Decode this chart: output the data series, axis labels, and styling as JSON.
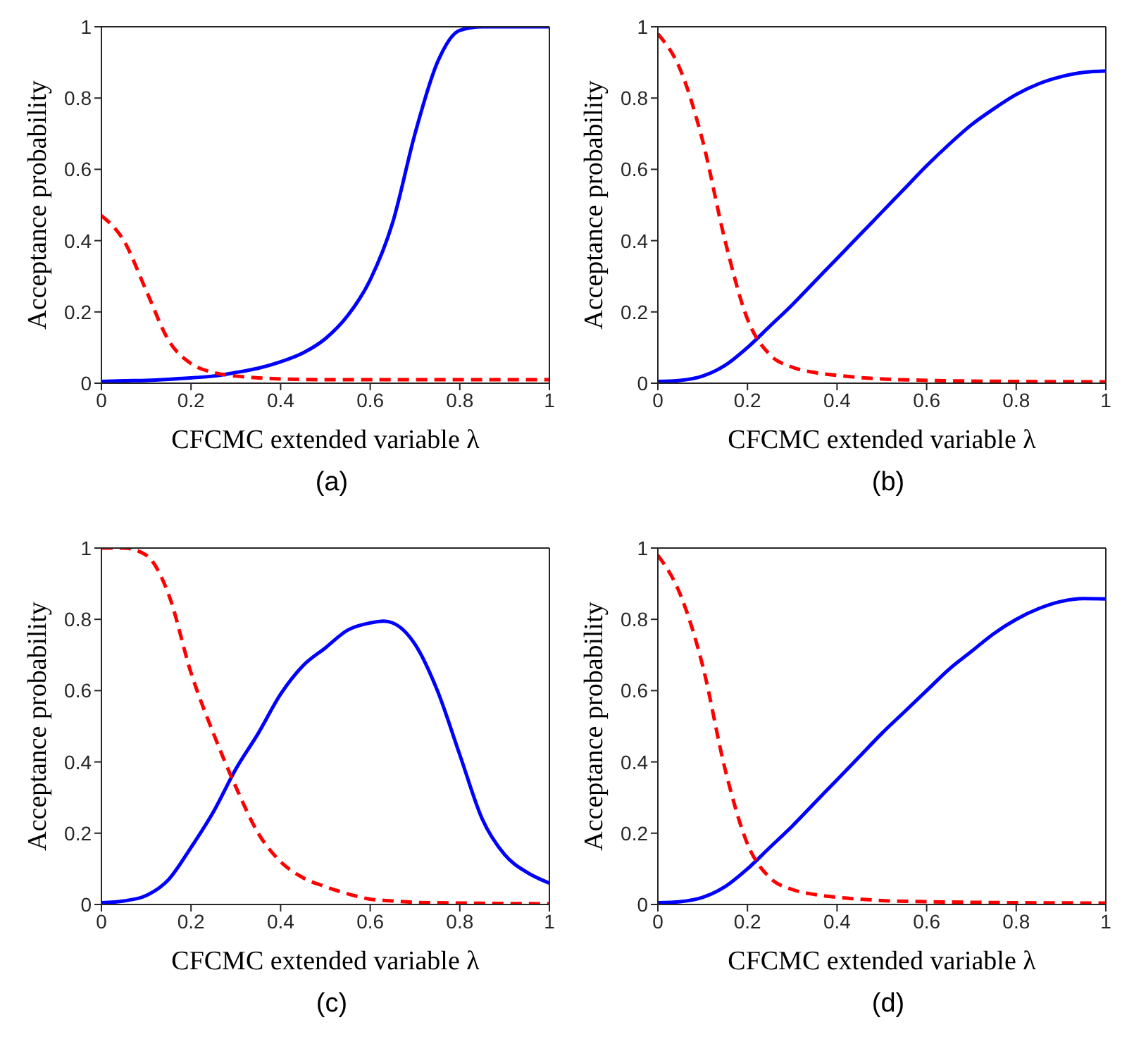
{
  "chart_data": [
    {
      "type": "line",
      "xlabel": "CFCMC extended variable λ",
      "ylabel": "Acceptance probability",
      "annotations": [
        "(a)"
      ],
      "xlim": [
        0,
        1
      ],
      "ylim": [
        0,
        1
      ],
      "xticks": [
        0,
        0.2,
        0.4,
        0.6,
        0.8,
        1
      ],
      "yticks": [
        0,
        0.2,
        0.4,
        0.6,
        0.8,
        1
      ],
      "grid": false,
      "legend": false,
      "marker": "none",
      "series": [
        {
          "color": "#0000ff",
          "line_style": "solid",
          "x": [
            0,
            0.05,
            0.1,
            0.15,
            0.2,
            0.25,
            0.3,
            0.35,
            0.4,
            0.45,
            0.5,
            0.55,
            0.6,
            0.65,
            0.7,
            0.75,
            0.8,
            0.85,
            0.9,
            0.95,
            1
          ],
          "values": [
            0.005,
            0.007,
            0.008,
            0.011,
            0.015,
            0.02,
            0.03,
            0.042,
            0.06,
            0.085,
            0.125,
            0.19,
            0.29,
            0.45,
            0.7,
            0.9,
            0.99,
            1,
            1,
            1,
            1
          ]
        },
        {
          "color": "#ff0000",
          "line_style": "dashed",
          "x": [
            0,
            0.05,
            0.1,
            0.15,
            0.2,
            0.25,
            0.3,
            0.35,
            0.4,
            0.5,
            0.6,
            0.7,
            0.8,
            0.9,
            1
          ],
          "values": [
            0.47,
            0.4,
            0.26,
            0.12,
            0.055,
            0.03,
            0.02,
            0.015,
            0.012,
            0.01,
            0.01,
            0.01,
            0.01,
            0.01,
            0.01
          ]
        }
      ]
    },
    {
      "type": "line",
      "xlabel": "CFCMC extended variable λ",
      "ylabel": "Acceptance probability",
      "annotations": [
        "(b)"
      ],
      "xlim": [
        0,
        1
      ],
      "ylim": [
        0,
        1
      ],
      "xticks": [
        0,
        0.2,
        0.4,
        0.6,
        0.8,
        1
      ],
      "yticks": [
        0,
        0.2,
        0.4,
        0.6,
        0.8,
        1
      ],
      "grid": false,
      "legend": false,
      "marker": "none",
      "series": [
        {
          "color": "#0000ff",
          "line_style": "solid",
          "x": [
            0,
            0.05,
            0.1,
            0.15,
            0.2,
            0.25,
            0.3,
            0.35,
            0.4,
            0.45,
            0.5,
            0.55,
            0.6,
            0.65,
            0.7,
            0.75,
            0.8,
            0.85,
            0.9,
            0.95,
            1
          ],
          "values": [
            0.005,
            0.008,
            0.02,
            0.05,
            0.1,
            0.16,
            0.22,
            0.285,
            0.35,
            0.415,
            0.48,
            0.545,
            0.61,
            0.67,
            0.725,
            0.77,
            0.81,
            0.84,
            0.86,
            0.872,
            0.876
          ]
        },
        {
          "color": "#ff0000",
          "line_style": "dashed",
          "x": [
            0,
            0.05,
            0.1,
            0.15,
            0.2,
            0.25,
            0.3,
            0.35,
            0.4,
            0.45,
            0.5,
            0.6,
            0.7,
            0.8,
            1
          ],
          "values": [
            0.98,
            0.88,
            0.68,
            0.4,
            0.18,
            0.08,
            0.045,
            0.03,
            0.022,
            0.016,
            0.012,
            0.008,
            0.006,
            0.005,
            0.004
          ]
        }
      ]
    },
    {
      "type": "line",
      "xlabel": "CFCMC extended variable λ",
      "ylabel": "Acceptance probability",
      "annotations": [
        "(c)"
      ],
      "xlim": [
        0,
        1
      ],
      "ylim": [
        0,
        1
      ],
      "xticks": [
        0,
        0.2,
        0.4,
        0.6,
        0.8,
        1
      ],
      "yticks": [
        0,
        0.2,
        0.4,
        0.6,
        0.8,
        1
      ],
      "grid": false,
      "legend": false,
      "marker": "none",
      "series": [
        {
          "color": "#0000ff",
          "line_style": "solid",
          "x": [
            0,
            0.05,
            0.1,
            0.15,
            0.2,
            0.25,
            0.3,
            0.35,
            0.4,
            0.45,
            0.5,
            0.55,
            0.6,
            0.63,
            0.65,
            0.7,
            0.75,
            0.8,
            0.85,
            0.9,
            0.95,
            1
          ],
          "values": [
            0.005,
            0.01,
            0.025,
            0.07,
            0.16,
            0.26,
            0.38,
            0.48,
            0.59,
            0.67,
            0.72,
            0.77,
            0.79,
            0.795,
            0.79,
            0.73,
            0.6,
            0.42,
            0.24,
            0.14,
            0.09,
            0.06
          ]
        },
        {
          "color": "#ff0000",
          "line_style": "dashed",
          "x": [
            0,
            0.05,
            0.1,
            0.15,
            0.2,
            0.25,
            0.3,
            0.35,
            0.4,
            0.45,
            0.5,
            0.55,
            0.6,
            0.65,
            0.7,
            0.8,
            1
          ],
          "values": [
            1,
            1,
            0.98,
            0.87,
            0.65,
            0.48,
            0.33,
            0.2,
            0.12,
            0.075,
            0.05,
            0.03,
            0.015,
            0.01,
            0.006,
            0.004,
            0.002
          ]
        }
      ]
    },
    {
      "type": "line",
      "xlabel": "CFCMC extended variable λ",
      "ylabel": "Acceptance probability",
      "annotations": [
        "(d)"
      ],
      "xlim": [
        0,
        1
      ],
      "ylim": [
        0,
        1
      ],
      "xticks": [
        0,
        0.2,
        0.4,
        0.6,
        0.8,
        1
      ],
      "yticks": [
        0,
        0.2,
        0.4,
        0.6,
        0.8,
        1
      ],
      "grid": false,
      "legend": false,
      "marker": "none",
      "series": [
        {
          "color": "#0000ff",
          "line_style": "solid",
          "x": [
            0,
            0.05,
            0.1,
            0.15,
            0.2,
            0.25,
            0.3,
            0.35,
            0.4,
            0.45,
            0.5,
            0.55,
            0.6,
            0.65,
            0.7,
            0.75,
            0.8,
            0.85,
            0.9,
            0.95,
            1
          ],
          "values": [
            0.005,
            0.008,
            0.02,
            0.05,
            0.1,
            0.16,
            0.22,
            0.285,
            0.35,
            0.415,
            0.48,
            0.54,
            0.6,
            0.66,
            0.71,
            0.76,
            0.8,
            0.83,
            0.85,
            0.858,
            0.857
          ]
        },
        {
          "color": "#ff0000",
          "line_style": "dashed",
          "x": [
            0,
            0.05,
            0.1,
            0.15,
            0.2,
            0.25,
            0.3,
            0.35,
            0.4,
            0.45,
            0.5,
            0.6,
            0.7,
            0.8,
            1
          ],
          "values": [
            0.98,
            0.87,
            0.67,
            0.38,
            0.17,
            0.075,
            0.042,
            0.028,
            0.02,
            0.015,
            0.011,
            0.008,
            0.006,
            0.005,
            0.004
          ]
        }
      ]
    }
  ]
}
